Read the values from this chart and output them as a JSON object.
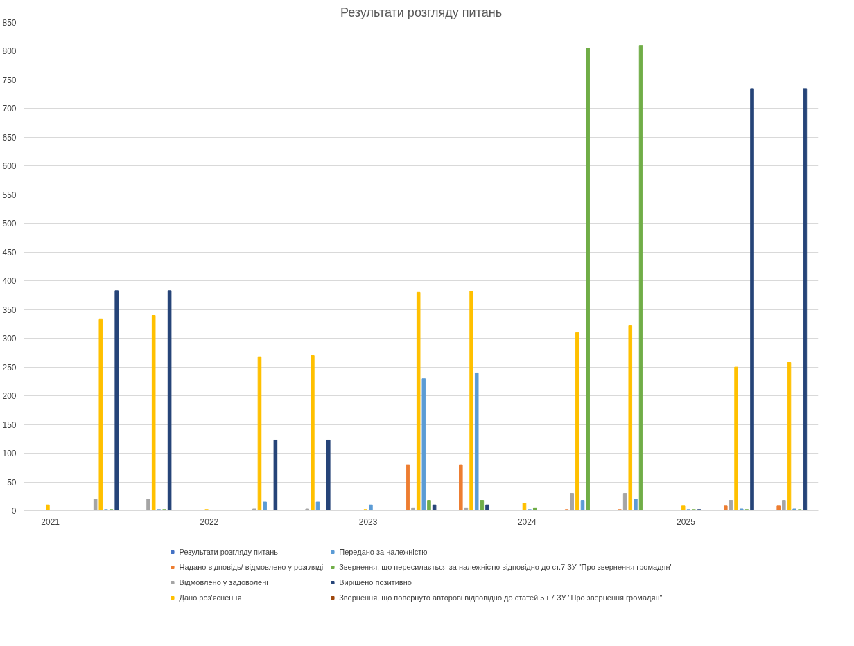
{
  "chart_data": {
    "type": "bar",
    "title": "Результати розгляду питань",
    "categories": [
      "2021",
      null,
      null,
      "2022",
      null,
      null,
      "2023",
      null,
      null,
      "2024",
      null,
      null,
      "2025",
      null,
      null
    ],
    "series": [
      {
        "name": "Результати розгляду питань",
        "color": "#4472c4",
        "values": [
          0,
          0,
          0,
          0,
          0,
          0,
          0,
          0,
          0,
          0,
          0,
          0,
          0,
          0,
          0
        ]
      },
      {
        "name": "Надано відповідь/ відмовлено у розгляді",
        "color": "#ed7d31",
        "values": [
          0,
          0,
          0,
          0,
          0,
          0,
          0,
          80,
          80,
          0,
          2,
          2,
          0,
          8,
          8
        ]
      },
      {
        "name": "Відмовлено у задоволені",
        "color": "#a5a5a5",
        "values": [
          0,
          20,
          20,
          0,
          3,
          3,
          0,
          5,
          5,
          0,
          30,
          30,
          0,
          18,
          18
        ]
      },
      {
        "name": "Дано роз'яснення",
        "color": "#ffc000",
        "values": [
          10,
          333,
          340,
          2,
          268,
          270,
          2,
          380,
          382,
          13,
          310,
          322,
          8,
          250,
          258
        ]
      },
      {
        "name": "Передано за належністю",
        "color": "#5b9bd5",
        "values": [
          0,
          2,
          2,
          0,
          15,
          15,
          10,
          230,
          240,
          2,
          18,
          20,
          2,
          3,
          3
        ]
      },
      {
        "name": "Звернення, що пересилається за належністю відповідно до ст.7 ЗУ \"Про звернення громадян\"",
        "color": "#70ad47",
        "values": [
          0,
          2,
          2,
          0,
          0,
          0,
          0,
          18,
          18,
          5,
          805,
          810,
          2,
          2,
          2
        ]
      },
      {
        "name": "Вирішено позитивно",
        "color": "#264478",
        "values": [
          0,
          383,
          383,
          0,
          123,
          123,
          0,
          10,
          10,
          0,
          0,
          0,
          2,
          735,
          735
        ]
      },
      {
        "name": "Звернення, що повернуто авторові відповідно до статей 5 і 7 ЗУ \"Про звернення громадян\"",
        "color": "#9e480e",
        "values": [
          0,
          0,
          0,
          0,
          0,
          0,
          0,
          0,
          0,
          0,
          0,
          0,
          0,
          0,
          0
        ]
      }
    ],
    "ylim": [
      0,
      850
    ],
    "yticks": [
      0,
      50,
      100,
      150,
      200,
      250,
      300,
      350,
      400,
      450,
      500,
      550,
      600,
      650,
      700,
      750,
      800,
      850
    ],
    "grid": "y",
    "legend": "bottom"
  }
}
